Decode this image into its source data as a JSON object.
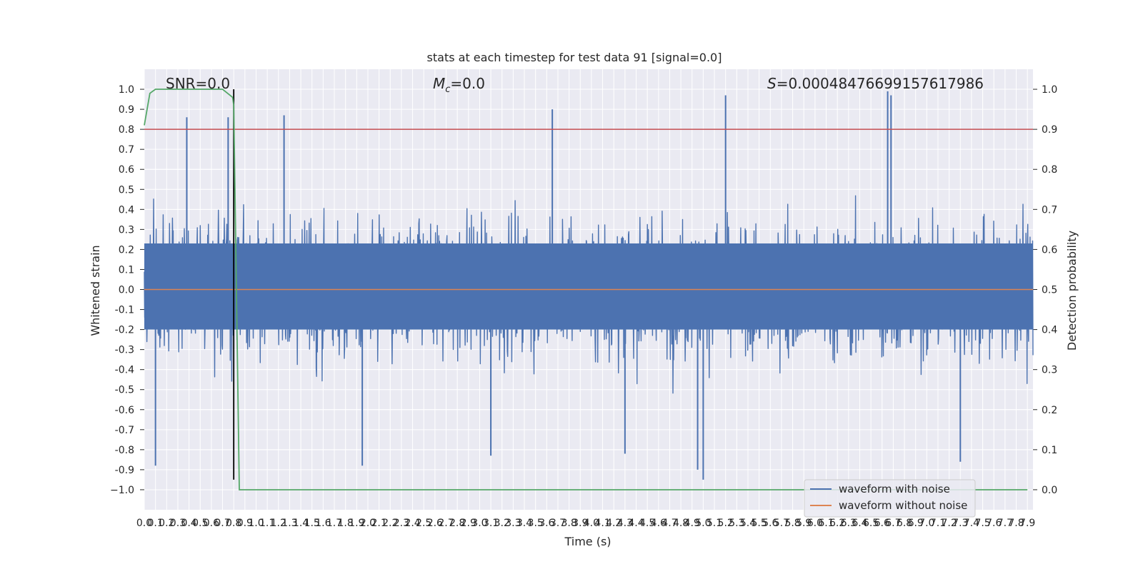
{
  "chart_data": {
    "type": "line",
    "title": "stats at each timestep for test data 91 [signal=0.0]",
    "xlabel": "Time (s)",
    "ylabel_left": "Whitened strain",
    "ylabel_right": "Detection probability",
    "xlim": [
      0.0,
      7.95
    ],
    "ylim_left": [
      -1.1,
      1.1
    ],
    "ylim_right": [
      -0.05,
      1.05
    ],
    "x_ticks": [
      "0.0",
      "0.1",
      "0.2",
      "0.3",
      "0.4",
      "0.5",
      "0.6",
      "0.7",
      "0.8",
      "0.9",
      "1.0",
      "1.1",
      "1.2",
      "1.3",
      "1.4",
      "1.5",
      "1.6",
      "1.7",
      "1.8",
      "1.9",
      "2.0",
      "2.1",
      "2.2",
      "2.3",
      "2.4",
      "2.5",
      "2.6",
      "2.7",
      "2.8",
      "2.9",
      "3.0",
      "3.1",
      "3.2",
      "3.3",
      "3.4",
      "3.5",
      "3.6",
      "3.7",
      "3.8",
      "3.9",
      "4.0",
      "4.1",
      "4.2",
      "4.3",
      "4.4",
      "4.5",
      "4.6",
      "4.7",
      "4.8",
      "4.9",
      "5.0",
      "5.1",
      "5.2",
      "5.3",
      "5.4",
      "5.5",
      "5.6",
      "5.7",
      "5.8",
      "5.9",
      "6.0",
      "6.1",
      "6.2",
      "6.3",
      "6.4",
      "6.5",
      "6.6",
      "6.7",
      "6.8",
      "6.9",
      "7.0",
      "7.1",
      "7.2",
      "7.3",
      "7.4",
      "7.5",
      "7.6",
      "7.7",
      "7.8",
      "7.9"
    ],
    "y_ticks_left": [
      "1.0",
      "0.9",
      "0.8",
      "0.7",
      "0.6",
      "0.5",
      "0.4",
      "0.3",
      "0.2",
      "0.1",
      "0.0",
      "-0.1",
      "-0.2",
      "-0.3",
      "-0.4",
      "-0.5",
      "-0.6",
      "-0.7",
      "-0.8",
      "-0.9",
      "−1.0"
    ],
    "y_ticks_right": [
      "1.0",
      "0.9",
      "0.8",
      "0.7",
      "0.6",
      "0.5",
      "0.4",
      "0.3",
      "0.2",
      "0.1",
      "0.0"
    ],
    "annotations": {
      "snr": "SNR=0.0",
      "mc_symbol": "M",
      "mc_sub": "c",
      "mc_value": "=0.0",
      "s_symbol": "S",
      "s_value": "=0.0004847669915761798​6"
    },
    "series": [
      {
        "name": "waveform with noise",
        "color": "#4c72b0",
        "style": "dense noise",
        "envelope": {
          "typical_amplitude": 0.5,
          "min": -0.95,
          "max": 0.99
        },
        "notable_peaks": [
          {
            "x": 0.38,
            "y": 0.86
          },
          {
            "x": 0.75,
            "y": 0.86
          },
          {
            "x": 1.25,
            "y": 0.87
          },
          {
            "x": 3.65,
            "y": 0.9
          },
          {
            "x": 5.2,
            "y": 0.97
          },
          {
            "x": 6.65,
            "y": 0.99
          },
          {
            "x": 6.68,
            "y": 0.97
          }
        ],
        "notable_troughs": [
          {
            "x": 0.1,
            "y": -0.88
          },
          {
            "x": 1.95,
            "y": -0.88
          },
          {
            "x": 3.1,
            "y": -0.83
          },
          {
            "x": 4.3,
            "y": -0.82
          },
          {
            "x": 4.95,
            "y": -0.9
          },
          {
            "x": 5.0,
            "y": -0.95
          },
          {
            "x": 7.3,
            "y": -0.86
          }
        ]
      },
      {
        "name": "waveform without noise",
        "color": "#dd8452",
        "x": [
          0.0,
          7.95
        ],
        "y": [
          0.0,
          0.0
        ]
      },
      {
        "name": "detection probability",
        "color": "#55a868",
        "axis": "right",
        "x": [
          0.0,
          0.05,
          0.1,
          0.2,
          0.5,
          0.7,
          0.79,
          0.8,
          0.85,
          1.0,
          7.9
        ],
        "y": [
          0.91,
          0.99,
          1.0,
          1.0,
          1.0,
          1.0,
          0.98,
          0.96,
          0.0,
          0.0,
          0.0
        ]
      }
    ],
    "reference_lines": [
      {
        "type": "horizontal",
        "axis": "right",
        "value": 0.9,
        "color": "#c44e52"
      },
      {
        "type": "vertical",
        "value": 0.8,
        "color": "#000000",
        "ylim": [
          -0.95,
          1.0
        ]
      }
    ],
    "legend": {
      "location": "lower-right",
      "entries": [
        "waveform with noise",
        "waveform without noise"
      ]
    },
    "grid": true
  }
}
